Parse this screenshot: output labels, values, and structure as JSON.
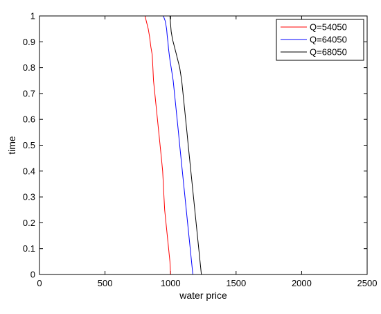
{
  "chart_data": {
    "type": "line",
    "title": "",
    "xlabel": "water price",
    "ylabel": "time",
    "xlim": [
      0,
      2500
    ],
    "ylim": [
      0,
      1
    ],
    "xticks": [
      0,
      500,
      1000,
      1500,
      2000,
      2500
    ],
    "yticks": [
      0,
      0.1,
      0.2,
      0.3,
      0.4,
      0.5,
      0.6,
      0.7,
      0.8,
      0.9,
      1
    ],
    "xtick_labels": [
      "0",
      "500",
      "1000",
      "1500",
      "2000",
      "2500"
    ],
    "ytick_labels": [
      "0",
      "0.1",
      "0.2",
      "0.3",
      "0.4",
      "0.5",
      "0.6",
      "0.7",
      "0.8",
      "0.9",
      "1"
    ],
    "grid": false,
    "legend_position": "top-right",
    "series": [
      {
        "name": "Q=54050",
        "color": "#ff0000",
        "x": [
          1000,
          995,
          985,
          975,
          965,
          955,
          950,
          945,
          940,
          930,
          920,
          910,
          900,
          890,
          880,
          870,
          865,
          860,
          850,
          840,
          830,
          815,
          805
        ],
        "y": [
          0,
          0.05,
          0.1,
          0.15,
          0.2,
          0.25,
          0.3,
          0.35,
          0.4,
          0.45,
          0.5,
          0.55,
          0.6,
          0.65,
          0.7,
          0.75,
          0.8,
          0.85,
          0.88,
          0.92,
          0.95,
          0.98,
          1.0
        ]
      },
      {
        "name": "Q=64050",
        "color": "#0000ff",
        "x": [
          1170,
          1160,
          1150,
          1140,
          1130,
          1120,
          1110,
          1100,
          1090,
          1080,
          1070,
          1060,
          1050,
          1040,
          1030,
          1020,
          1005,
          995,
          985,
          980,
          975,
          970,
          960,
          945
        ],
        "y": [
          0,
          0.05,
          0.1,
          0.15,
          0.2,
          0.25,
          0.3,
          0.35,
          0.4,
          0.45,
          0.5,
          0.55,
          0.6,
          0.65,
          0.7,
          0.75,
          0.8,
          0.83,
          0.87,
          0.9,
          0.92,
          0.95,
          0.98,
          1.0
        ]
      },
      {
        "name": "Q=68050",
        "color": "#000000",
        "x": [
          1235,
          1225,
          1215,
          1205,
          1195,
          1185,
          1175,
          1165,
          1155,
          1145,
          1135,
          1125,
          1115,
          1105,
          1095,
          1085,
          1070,
          1055,
          1040,
          1025,
          1015,
          1005,
          1000,
          995
        ],
        "y": [
          0,
          0.05,
          0.1,
          0.15,
          0.2,
          0.25,
          0.3,
          0.35,
          0.4,
          0.45,
          0.5,
          0.55,
          0.6,
          0.65,
          0.7,
          0.75,
          0.8,
          0.83,
          0.86,
          0.89,
          0.91,
          0.94,
          0.97,
          1.0
        ]
      }
    ]
  }
}
